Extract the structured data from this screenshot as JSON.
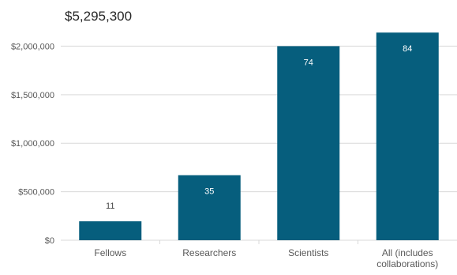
{
  "header_total": "$5,295,300",
  "chart_data": {
    "type": "bar",
    "categories": [
      "Fellows",
      "Researchers",
      "Scientists",
      "All (includes collaborations)"
    ],
    "category_label_lines": [
      [
        "Fellows"
      ],
      [
        "Researchers"
      ],
      [
        "Scientists"
      ],
      [
        "All (includes",
        "collaborations)"
      ]
    ],
    "values": [
      195000,
      670000,
      2000000,
      2140000
    ],
    "data_labels": [
      "11",
      "35",
      "74",
      "84"
    ],
    "ylim": [
      0,
      2150000
    ],
    "yticks": [
      0,
      500000,
      1000000,
      1500000,
      2000000
    ],
    "ytick_labels": [
      "$0",
      "$500,000",
      "$1,000,000",
      "$1,500,000",
      "$2,000,000"
    ],
    "grid": true,
    "legend": "none",
    "colors": {
      "bar": "#065e7d",
      "grid": "#d9d9d9",
      "axis_text": "#595959",
      "label_inside": "#ffffff",
      "label_outside": "#404040",
      "header_text": "#262626"
    }
  }
}
